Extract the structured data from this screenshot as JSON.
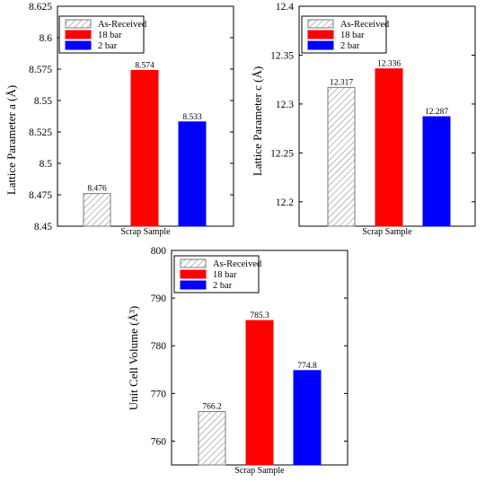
{
  "chart_data": [
    {
      "type": "bar",
      "categories": [
        "Scrap Sample"
      ],
      "series": [
        {
          "name": "As-Received",
          "values": [
            8.476
          ],
          "color": "hatched"
        },
        {
          "name": "18 bar",
          "values": [
            8.574
          ],
          "color": "#ff0000"
        },
        {
          "name": "2 bar",
          "values": [
            8.533
          ],
          "color": "#0000ff"
        }
      ],
      "data_labels": [
        "8.476",
        "8.574",
        "8.533"
      ],
      "ylabel": "Lattice Parameter a (Å)",
      "ylim": [
        8.45,
        8.625
      ],
      "yticks": [
        8.45,
        8.475,
        8.5,
        8.525,
        8.55,
        8.575,
        8.6,
        8.625
      ],
      "ytick_labels": [
        "8.45",
        "8.475",
        "8.5",
        "8.525",
        "8.55",
        "8.575",
        "8.6",
        "8.625"
      ],
      "xtick_labels": [
        "Scrap Sample"
      ],
      "legend_placement": "top-left",
      "grid": false
    },
    {
      "type": "bar",
      "categories": [
        "Scrap Sample"
      ],
      "series": [
        {
          "name": "As-Received",
          "values": [
            12.317
          ],
          "color": "hatched"
        },
        {
          "name": "18 bar",
          "values": [
            12.336
          ],
          "color": "#ff0000"
        },
        {
          "name": "2 bar",
          "values": [
            12.287
          ],
          "color": "#0000ff"
        }
      ],
      "data_labels": [
        "12.317",
        "12.336",
        "12.287"
      ],
      "ylabel": "Lattice Parameter c (Å)",
      "ylim": [
        12.175,
        12.4
      ],
      "yticks": [
        12.2,
        12.25,
        12.3,
        12.35,
        12.4
      ],
      "ytick_labels": [
        "12.2",
        "12.25",
        "12.3",
        "12.35",
        "12.4"
      ],
      "xtick_labels": [
        "Scrap Sample"
      ],
      "legend_placement": "top-left",
      "grid": false
    },
    {
      "type": "bar",
      "categories": [
        "Scrap Sample"
      ],
      "series": [
        {
          "name": "As-Received",
          "values": [
            766.2
          ],
          "color": "hatched"
        },
        {
          "name": "18 bar",
          "values": [
            785.3
          ],
          "color": "#ff0000"
        },
        {
          "name": "2 bar",
          "values": [
            774.8
          ],
          "color": "#0000ff"
        }
      ],
      "data_labels": [
        "766.2",
        "785.3",
        "774.8"
      ],
      "ylabel": "Unit Cell Volume (Å³)",
      "ylim": [
        755,
        800
      ],
      "yticks": [
        760,
        770,
        780,
        790,
        800
      ],
      "ytick_labels": [
        "760",
        "770",
        "780",
        "790",
        "800"
      ],
      "xtick_labels": [
        "Scrap Sample"
      ],
      "legend_placement": "top-left",
      "grid": false
    }
  ]
}
